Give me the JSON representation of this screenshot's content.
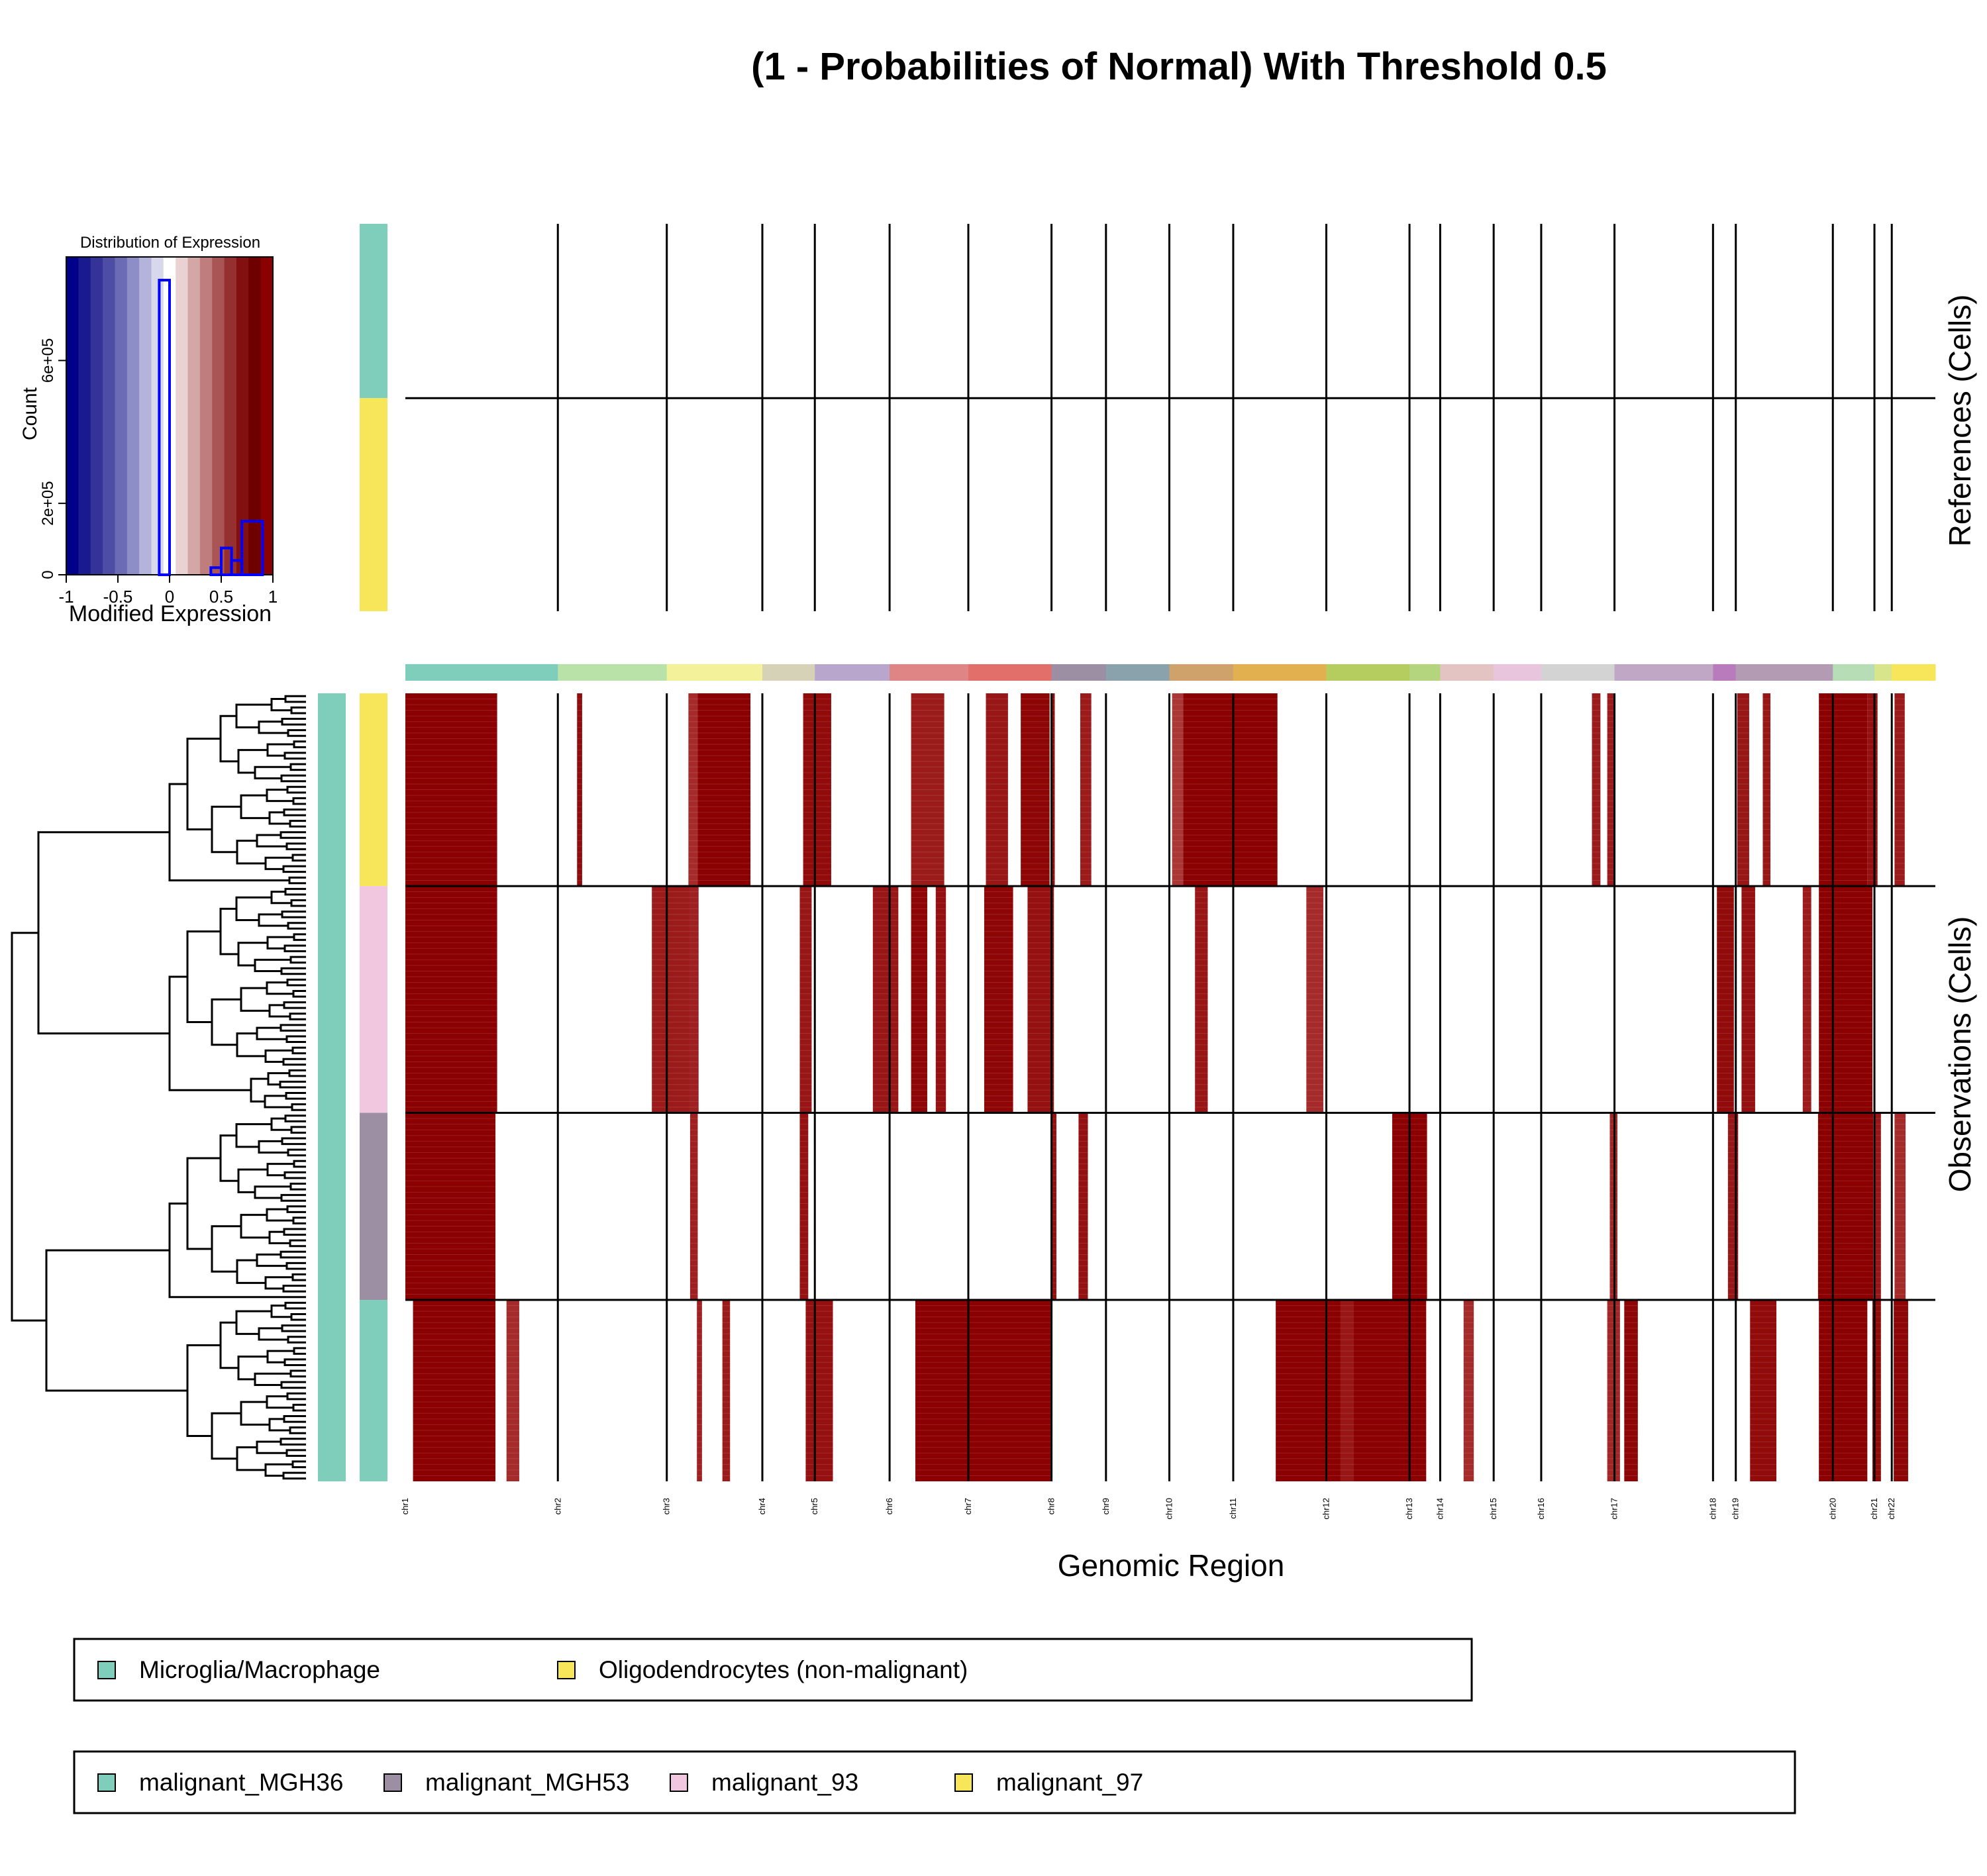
{
  "title": "(1 - Probabilities of Normal) With Threshold 0.5",
  "xlabel": "Genomic Region",
  "ref_label": "References (Cells)",
  "obs_label": "Observations (Cells)",
  "histogram": {
    "title": "Distribution of Expression",
    "xlabel": "Modified Expression",
    "ylabel": "Count",
    "xticks": [
      "-1",
      "-0.5",
      "0",
      "0.5",
      "1"
    ],
    "yticks": [
      "0",
      "2e+05",
      "6e+05"
    ],
    "ytick_values": [
      0,
      200000,
      600000
    ],
    "xlim": [
      -1,
      1
    ],
    "ylim": [
      0,
      890000
    ],
    "bins": [
      {
        "from": -0.1,
        "to": 0.0,
        "count": 825000
      },
      {
        "from": 0.4,
        "to": 0.5,
        "count": 20000
      },
      {
        "from": 0.5,
        "to": 0.6,
        "count": 75000
      },
      {
        "from": 0.6,
        "to": 0.7,
        "count": 40000
      },
      {
        "from": 0.7,
        "to": 0.9,
        "count": 150000
      }
    ],
    "line_color": "#0000ff",
    "colorscale": [
      "#00008b",
      "#1a1a8f",
      "#33339a",
      "#4d4da6",
      "#6b6bb5",
      "#8d8dc8",
      "#b3b3dc",
      "#d8d8ec",
      "#ffffff",
      "#ead2d2",
      "#d4a7a7",
      "#bf7d7d",
      "#aa5555",
      "#963030",
      "#821010",
      "#6e0000",
      "#8b0000"
    ]
  },
  "chromosomes": [
    "chr1",
    "chr2",
    "chr3",
    "chr4",
    "chr5",
    "chr6",
    "chr7",
    "chr8",
    "chr9",
    "chr10",
    "chr11",
    "chr12",
    "chr13",
    "chr14",
    "chr15",
    "chr16",
    "chr17",
    "chr18",
    "chr19",
    "chr20",
    "chr21",
    "chr22"
  ],
  "chr_colors": [
    "#7fcdbb",
    "#b8e2a8",
    "#f3f29a",
    "#d5d2b8",
    "#b9a6cc",
    "#e08585",
    "#e26f6a",
    "#9c8ea3",
    "#8aa2ac",
    "#cfa26c",
    "#e3b050",
    "#b5cc5e",
    "#b4d47d",
    "#e3c4c2",
    "#e9c5dd",
    "#d3d3d3",
    "#c1a7c6",
    "#b97bbb",
    "#b49bb4",
    "#b7ddb6",
    "#d9e58a",
    "#f7e55a"
  ],
  "chr_span_units": [
    30.8,
    22.0,
    19.3,
    10.6,
    15.1,
    15.9,
    16.8,
    11.0,
    12.8,
    12.9,
    18.8,
    16.8,
    6.2,
    10.8,
    9.6,
    14.8,
    19.9,
    4.6,
    19.6,
    8.4,
    3.5,
    8.8
  ],
  "cell_types": {
    "references": [
      {
        "name": "Microglia/Macrophage",
        "color": "#7fcdbb",
        "cells": 45
      },
      {
        "name": "Oligodendrocytes (non-malignant)",
        "color": "#f7e55a",
        "cells": 55
      }
    ],
    "observations": [
      {
        "name": "malignant_97",
        "color": "#f7e55a",
        "cells": 34
      },
      {
        "name": "malignant_93",
        "color": "#f1c7df",
        "cells": 40
      },
      {
        "name": "malignant_MGH53",
        "color": "#9c8ea3",
        "cells": 33
      },
      {
        "name": "malignant_MGH36",
        "color": "#7fcdbb",
        "cells": 32
      }
    ]
  },
  "outer_annotation": {
    "label": "Microglia/Macrophage",
    "color": "#7fcdbb"
  },
  "legends": {
    "references": [
      {
        "label": "Microglia/Macrophage",
        "color": "#7fcdbb"
      },
      {
        "label": "Oligodendrocytes (non-malignant)",
        "color": "#f7e55a"
      }
    ],
    "observations": [
      {
        "label": "malignant_MGH36",
        "color": "#7fcdbb"
      },
      {
        "label": "malignant_MGH53",
        "color": "#9c8ea3"
      },
      {
        "label": "malignant_93",
        "color": "#f1c7df"
      },
      {
        "label": "malignant_97",
        "color": "#f7e55a"
      }
    ]
  },
  "chart_data": {
    "type": "heatmap",
    "title": "(1 - Probabilities of Normal) With Threshold 0.5",
    "xlabel": "Genomic Region",
    "value_range": [
      -1,
      1
    ],
    "note_units": "x positions in chr units (cumulative genome coordinate index, 0-100 scale); values = intensity 0-1",
    "groups": [
      {
        "group": "malignant_97",
        "segments": [
          {
            "start": 0.0,
            "end": 10.8,
            "value": 1.0
          },
          {
            "start": 20.2,
            "end": 20.8,
            "value": 0.9
          },
          {
            "start": 33.3,
            "end": 34.4,
            "value": 0.6
          },
          {
            "start": 34.4,
            "end": 40.6,
            "value": 1.0
          },
          {
            "start": 46.8,
            "end": 50.1,
            "value": 0.9
          },
          {
            "start": 59.5,
            "end": 63.4,
            "value": 0.75
          },
          {
            "start": 68.3,
            "end": 70.9,
            "value": 0.8
          },
          {
            "start": 72.4,
            "end": 75.8,
            "value": 0.95
          },
          {
            "start": 76.0,
            "end": 76.4,
            "value": 0.9
          },
          {
            "start": 79.4,
            "end": 80.7,
            "value": 0.75
          },
          {
            "start": 90.2,
            "end": 91.5,
            "value": 0.5
          },
          {
            "start": 91.5,
            "end": 102.6,
            "value": 1.0
          },
          {
            "start": 139.6,
            "end": 140.6,
            "value": 0.75
          },
          {
            "start": 141.4,
            "end": 142.2,
            "value": 0.75
          },
          {
            "start": 156.7,
            "end": 158.1,
            "value": 0.8
          },
          {
            "start": 159.7,
            "end": 160.6,
            "value": 0.8
          },
          {
            "start": 166.3,
            "end": 172.0,
            "value": 1.0
          },
          {
            "start": 172.0,
            "end": 173.2,
            "value": 0.85
          },
          {
            "start": 175.2,
            "end": 176.4,
            "value": 0.75
          }
        ]
      },
      {
        "group": "malignant_93",
        "segments": [
          {
            "start": 0.0,
            "end": 10.8,
            "value": 1.0
          },
          {
            "start": 29.0,
            "end": 34.2,
            "value": 0.75
          },
          {
            "start": 33.4,
            "end": 34.5,
            "value": 0.7
          },
          {
            "start": 46.4,
            "end": 47.8,
            "value": 0.8
          },
          {
            "start": 55.0,
            "end": 58.0,
            "value": 0.8
          },
          {
            "start": 59.5,
            "end": 61.4,
            "value": 0.95
          },
          {
            "start": 62.4,
            "end": 63.6,
            "value": 0.85
          },
          {
            "start": 68.1,
            "end": 71.5,
            "value": 0.95
          },
          {
            "start": 73.2,
            "end": 76.3,
            "value": 0.85
          },
          {
            "start": 92.9,
            "end": 94.4,
            "value": 0.8
          },
          {
            "start": 106.0,
            "end": 108.0,
            "value": 0.6
          },
          {
            "start": 154.3,
            "end": 156.3,
            "value": 0.9
          },
          {
            "start": 157.2,
            "end": 158.8,
            "value": 0.85
          },
          {
            "start": 164.4,
            "end": 165.4,
            "value": 0.75
          },
          {
            "start": 166.3,
            "end": 172.6,
            "value": 1.0
          }
        ]
      },
      {
        "group": "malignant_MGH53",
        "segments": [
          {
            "start": 0.0,
            "end": 10.6,
            "value": 1.0
          },
          {
            "start": 33.5,
            "end": 34.4,
            "value": 0.7
          },
          {
            "start": 46.4,
            "end": 47.4,
            "value": 0.85
          },
          {
            "start": 76.0,
            "end": 76.6,
            "value": 0.85
          },
          {
            "start": 79.2,
            "end": 80.3,
            "value": 0.85
          },
          {
            "start": 116.1,
            "end": 120.2,
            "value": 1.0
          },
          {
            "start": 141.7,
            "end": 142.6,
            "value": 0.65
          },
          {
            "start": 155.6,
            "end": 156.8,
            "value": 0.8
          },
          {
            "start": 166.2,
            "end": 172.7,
            "value": 1.0
          },
          {
            "start": 172.8,
            "end": 173.6,
            "value": 0.8
          },
          {
            "start": 175.2,
            "end": 176.5,
            "value": 0.6
          }
        ]
      },
      {
        "group": "malignant_MGH36",
        "segments": [
          {
            "start": 0.9,
            "end": 10.6,
            "value": 1.0
          },
          {
            "start": 11.9,
            "end": 13.4,
            "value": 0.6
          },
          {
            "start": 34.3,
            "end": 34.9,
            "value": 0.7
          },
          {
            "start": 37.3,
            "end": 38.2,
            "value": 0.75
          },
          {
            "start": 47.1,
            "end": 50.3,
            "value": 0.85
          },
          {
            "start": 60.0,
            "end": 75.9,
            "value": 1.0
          },
          {
            "start": 102.4,
            "end": 120.1,
            "value": 1.0
          },
          {
            "start": 110.0,
            "end": 111.6,
            "value": 0.8
          },
          {
            "start": 124.5,
            "end": 125.7,
            "value": 0.6
          },
          {
            "start": 141.4,
            "end": 142.9,
            "value": 0.65
          },
          {
            "start": 143.4,
            "end": 145.0,
            "value": 0.95
          },
          {
            "start": 158.2,
            "end": 161.3,
            "value": 0.9
          },
          {
            "start": 166.3,
            "end": 172.0,
            "value": 1.0
          },
          {
            "start": 172.6,
            "end": 173.6,
            "value": 0.9
          },
          {
            "start": 175.1,
            "end": 176.8,
            "value": 0.95
          }
        ]
      }
    ]
  }
}
